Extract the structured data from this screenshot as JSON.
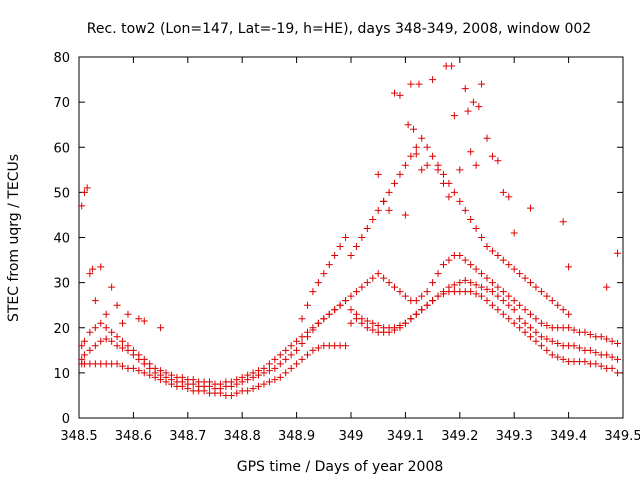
{
  "chart_data": {
    "type": "scatter",
    "title": "Rec. tow2 (Lon=147, Lat=-19, h=HE), days 348-349, 2008, window 002",
    "xlabel": "GPS time / Days of year 2008",
    "ylabel": "STEC from uqrg / TECUs",
    "xlim": [
      348.5,
      349.5
    ],
    "ylim": [
      0,
      80
    ],
    "x_ticks": [
      348.5,
      348.6,
      348.7,
      348.8,
      348.9,
      349,
      349.1,
      349.2,
      349.3,
      349.4,
      349.5
    ],
    "x_tick_labels": [
      "348.5",
      "348.6",
      "348.7",
      "348.8",
      "348.9",
      "349",
      "349.1",
      "349.2",
      "349.3",
      "349.4",
      "349.5"
    ],
    "y_ticks": [
      0,
      10,
      20,
      30,
      40,
      50,
      60,
      70,
      80
    ],
    "y_tick_labels": [
      "0",
      "10",
      "20",
      "30",
      "40",
      "50",
      "60",
      "70",
      "80"
    ],
    "grid": false,
    "marker": "+",
    "marker_color": "#dd0000",
    "series": [
      {
        "x": [
          348.505,
          348.51,
          348.52,
          348.53,
          348.54,
          348.55,
          348.56,
          348.57,
          348.58,
          348.59,
          348.6,
          348.61,
          348.62,
          348.63,
          348.64,
          348.65,
          348.66,
          348.67,
          348.68,
          348.69,
          348.7,
          348.71,
          348.72,
          348.73,
          348.74,
          348.75,
          348.76,
          348.77,
          348.78,
          348.79,
          348.8,
          348.81,
          348.82,
          348.83,
          348.84,
          348.85,
          348.86,
          348.87,
          348.88,
          348.89,
          348.9,
          348.91,
          348.92,
          348.93,
          348.94,
          348.95,
          348.96,
          348.97,
          348.98,
          348.99,
          349.0,
          349.01,
          349.02,
          349.03,
          349.04,
          349.05,
          349.06,
          349.07,
          349.08,
          349.09,
          349.1,
          349.11,
          349.12,
          349.13,
          349.14,
          349.15,
          349.16,
          349.17,
          349.18,
          349.19,
          349.2,
          349.21,
          349.22,
          349.23,
          349.24,
          349.25,
          349.26,
          349.27,
          349.28,
          349.29,
          349.3,
          349.31,
          349.32,
          349.33,
          349.34,
          349.35,
          349.36,
          349.37,
          349.38,
          349.39,
          349.4,
          349.41,
          349.42,
          349.43,
          349.44,
          349.45,
          349.46,
          349.47,
          349.48,
          349.49
        ],
        "y": [
          13,
          14,
          15,
          16,
          17,
          17.5,
          17,
          16,
          15.5,
          15,
          14,
          13,
          12,
          11,
          10,
          9.5,
          9,
          8.5,
          8,
          8,
          7.5,
          7.5,
          7,
          7,
          7,
          6.5,
          6.5,
          7,
          7,
          7.5,
          8,
          8.5,
          9,
          9.5,
          10,
          10.5,
          11,
          12,
          13,
          14,
          15,
          16.5,
          18,
          19.5,
          21,
          22,
          23,
          24,
          25,
          26,
          24,
          23,
          22,
          21.5,
          21,
          20.5,
          20,
          20,
          20,
          20.5,
          21,
          22,
          23,
          24,
          25,
          26,
          27,
          28,
          29,
          29.5,
          30,
          30.5,
          30,
          29.5,
          29,
          28.5,
          28,
          27,
          26,
          25,
          24,
          22,
          21,
          20,
          19,
          18,
          17.5,
          17,
          16.5,
          16,
          16,
          16,
          15.5,
          15,
          15,
          14.5,
          14,
          14,
          13.5,
          13
        ]
      },
      {
        "x": [
          348.505,
          348.51,
          348.52,
          348.53,
          348.54,
          348.55,
          348.56,
          348.57,
          348.58,
          348.59,
          348.6,
          348.61,
          348.62,
          348.63,
          348.64,
          348.65,
          348.66,
          348.67,
          348.68,
          348.69,
          348.7,
          348.71,
          348.72,
          348.73,
          348.74,
          348.75,
          348.76,
          348.77,
          348.78,
          348.79,
          348.8,
          348.81,
          348.82,
          348.83,
          348.84,
          348.85,
          348.86,
          348.87,
          348.88,
          348.89,
          348.9,
          348.91,
          348.92,
          348.93,
          348.94,
          348.95,
          348.96,
          348.97,
          348.98,
          348.99,
          349.0,
          349.01,
          349.02,
          349.03,
          349.04,
          349.05,
          349.06,
          349.07,
          349.08,
          349.09,
          349.1,
          349.11,
          349.12,
          349.13,
          349.14,
          349.15,
          349.16,
          349.17,
          349.18,
          349.19,
          349.2,
          349.21,
          349.22,
          349.23,
          349.24,
          349.25,
          349.26,
          349.27,
          349.28,
          349.29,
          349.3,
          349.31,
          349.32,
          349.33,
          349.34,
          349.35,
          349.36,
          349.37,
          349.38,
          349.39,
          349.4,
          349.41,
          349.42,
          349.43,
          349.44,
          349.45,
          349.46,
          349.47,
          349.48,
          349.49
        ],
        "y": [
          12,
          12,
          12,
          12,
          12,
          12,
          12,
          12,
          11.5,
          11,
          11,
          10.5,
          10,
          9.5,
          9,
          8.5,
          8,
          7.5,
          7,
          7,
          6.5,
          6,
          6,
          6,
          5.5,
          5.5,
          5.5,
          5,
          5,
          5.5,
          6,
          6,
          6.5,
          7,
          7.5,
          8,
          8.5,
          9,
          10,
          11,
          12,
          13,
          14,
          15,
          15.5,
          16,
          16,
          16,
          16,
          16,
          21,
          22,
          21,
          20,
          19.5,
          19,
          19,
          19,
          19.5,
          20,
          21,
          22,
          23,
          24,
          25,
          26,
          27,
          27.5,
          28,
          28,
          28,
          28,
          28,
          27.5,
          27,
          26,
          25,
          24,
          23,
          22,
          21,
          20,
          19,
          18,
          17,
          16,
          15,
          14,
          13.5,
          13,
          12.5,
          12.5,
          12.5,
          12.5,
          12,
          12,
          11.5,
          11,
          11,
          10
        ]
      },
      {
        "x": [
          348.505,
          348.51,
          348.52,
          348.53,
          348.54,
          348.55,
          348.56,
          348.57,
          348.58,
          348.59,
          348.6,
          348.61,
          348.62,
          348.63,
          348.64,
          348.65,
          348.66,
          348.67,
          348.68,
          348.69,
          348.7,
          348.71,
          348.72,
          348.73,
          348.74,
          348.75,
          348.76,
          348.77,
          348.78,
          348.79,
          348.8,
          348.81,
          348.82,
          348.83,
          348.84,
          348.85,
          348.86,
          348.87,
          348.88,
          348.89,
          348.9,
          348.91,
          348.92,
          348.93,
          348.94,
          348.95,
          348.96,
          348.97,
          348.98,
          348.99
        ],
        "y": [
          16,
          17,
          19,
          20,
          21,
          20,
          19,
          18,
          17,
          16,
          15,
          14,
          13,
          12,
          11,
          10.5,
          10,
          9.5,
          9,
          9,
          8.5,
          8.5,
          8,
          8,
          8,
          7.5,
          7.5,
          8,
          8,
          8.5,
          9,
          9.5,
          10,
          10.5,
          11,
          12,
          13,
          14,
          15,
          16,
          17,
          18,
          19,
          20,
          21,
          22,
          23,
          24,
          25,
          26
        ]
      },
      {
        "x": [
          349.0,
          349.01,
          349.02,
          349.03,
          349.04,
          349.05,
          349.06,
          349.07,
          349.08,
          349.09,
          349.1,
          349.11,
          349.12,
          349.13,
          349.14,
          349.15,
          349.16,
          349.17,
          349.18,
          349.19,
          349.2,
          349.21,
          349.22,
          349.23,
          349.24,
          349.25,
          349.26,
          349.27,
          349.28,
          349.29,
          349.3,
          349.31,
          349.32,
          349.33,
          349.34,
          349.35,
          349.36,
          349.37,
          349.38,
          349.39,
          349.4,
          349.41,
          349.42,
          349.43,
          349.44,
          349.45,
          349.46,
          349.47,
          349.48,
          349.49
        ],
        "y": [
          27,
          28,
          29,
          30,
          31,
          32,
          31,
          30,
          29,
          28,
          27,
          26,
          26,
          27,
          28,
          30,
          32,
          34,
          35,
          36,
          36,
          35,
          34,
          33,
          32,
          31,
          30,
          29,
          28,
          27,
          26,
          25,
          24,
          23,
          22,
          21,
          20.5,
          20,
          20,
          20,
          20,
          19.5,
          19,
          19,
          18.5,
          18,
          18,
          17.5,
          17,
          16.5
        ]
      },
      {
        "x": [
          348.91,
          348.92,
          348.93,
          348.94,
          348.95,
          348.96,
          348.97,
          348.98,
          348.99,
          349.0,
          349.01,
          349.02,
          349.03,
          349.04,
          349.05,
          349.06,
          349.07,
          349.08,
          349.09,
          349.1,
          349.11,
          349.12,
          349.13,
          349.14,
          349.15,
          349.16,
          349.17,
          349.18,
          349.19,
          349.2,
          349.21,
          349.22,
          349.23,
          349.24,
          349.25,
          349.26,
          349.27,
          349.28,
          349.29,
          349.3,
          349.31,
          349.32,
          349.33,
          349.34,
          349.35,
          349.36,
          349.37,
          349.38,
          349.39,
          349.4
        ],
        "y": [
          22,
          25,
          28,
          30,
          32,
          34,
          36,
          38,
          40,
          36,
          38,
          40,
          42,
          44,
          46,
          48,
          50,
          52,
          54,
          56,
          58,
          60,
          62,
          60,
          58,
          56,
          54,
          52,
          50,
          48,
          46,
          44,
          42,
          40,
          38,
          37,
          36,
          35,
          34,
          33,
          32,
          31,
          30,
          29,
          28,
          27,
          26,
          25,
          24,
          23
        ]
      },
      {
        "x": [
          348.505,
          348.51,
          348.515,
          348.52,
          348.525,
          348.53,
          348.54,
          348.55,
          348.56,
          348.57,
          348.58,
          348.59,
          348.61,
          348.62,
          348.65,
          349.05,
          349.06,
          349.07,
          349.08,
          349.09,
          349.1,
          349.105,
          349.11,
          349.115,
          349.12,
          349.125,
          349.13,
          349.14,
          349.15,
          349.16,
          349.17,
          349.175,
          349.18,
          349.185,
          349.19,
          349.2,
          349.21,
          349.215,
          349.22,
          349.225,
          349.23,
          349.235,
          349.24,
          349.25,
          349.26,
          349.27,
          349.28,
          349.29,
          349.3,
          349.33,
          349.39,
          349.4,
          349.47,
          349.49
        ],
        "y": [
          47,
          50,
          51,
          32,
          33,
          26,
          33.5,
          23,
          29,
          25,
          21,
          23,
          22,
          21.5,
          20,
          54,
          48,
          46,
          72,
          71.5,
          45,
          65,
          74,
          64,
          58.5,
          74,
          55,
          56,
          75,
          55,
          52,
          78,
          49,
          78,
          67,
          55,
          73,
          68,
          59,
          70,
          56,
          69,
          74,
          62,
          58,
          57,
          50,
          49,
          41,
          46.5,
          43.5,
          33.5,
          29,
          36.5
        ]
      }
    ]
  }
}
